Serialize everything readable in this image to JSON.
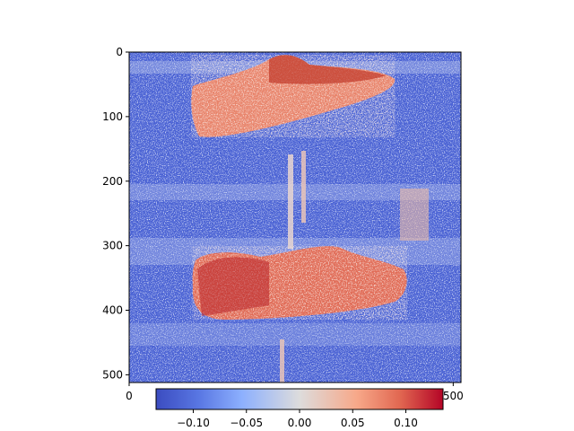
{
  "chart_data": [
    {
      "type": "heatmap",
      "title": "",
      "xlabel": "",
      "ylabel": "",
      "image_size": [
        512,
        512
      ],
      "x_ticks": [
        0,
        500
      ],
      "x_tick_labels": [
        "0",
        "500"
      ],
      "y_ticks": [
        0,
        100,
        200,
        300,
        400,
        500
      ],
      "y_tick_labels": [
        "0",
        "100",
        "200",
        "300",
        "400",
        "500"
      ],
      "xlim": [
        0,
        512
      ],
      "ylim": [
        512,
        0
      ],
      "colormap": "coolwarm",
      "value_range": [
        -0.135,
        0.135
      ],
      "description_colors": {
        "low": "#3b4cc0",
        "mid": "#dddddd",
        "high": "#b40426"
      }
    },
    {
      "type": "colorbar",
      "orientation": "horizontal",
      "ticks": [
        -0.1,
        -0.05,
        0.0,
        0.05,
        0.1
      ],
      "tick_labels": [
        "−0.10",
        "−0.05",
        "0.00",
        "0.05",
        "0.10"
      ],
      "range": [
        -0.135,
        0.135
      ]
    }
  ]
}
